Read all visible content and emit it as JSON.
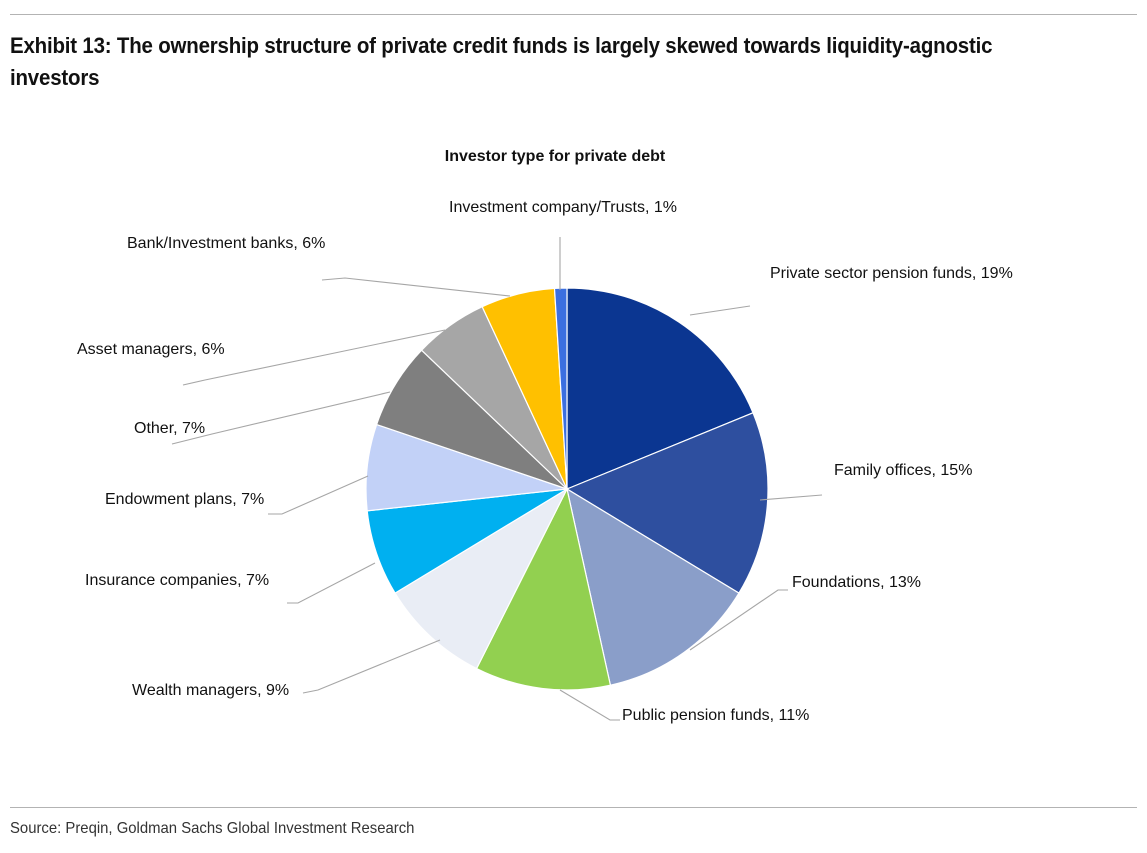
{
  "exhibit": {
    "title": "Exhibit 13: The ownership structure of private credit funds is largely skewed towards liquidity-agnostic investors",
    "source": "Source: Preqin, Goldman Sachs Global Investment Research"
  },
  "chart_data": {
    "type": "pie",
    "title": "Investor type for private debt",
    "unit": "%",
    "slices": [
      {
        "label": "Private sector pension funds",
        "value": 19,
        "color": "#0b3691"
      },
      {
        "label": "Family offices",
        "value": 15,
        "color": "#2e4f9f"
      },
      {
        "label": "Foundations",
        "value": 13,
        "color": "#8a9ec9"
      },
      {
        "label": "Public pension funds",
        "value": 11,
        "color": "#92d050"
      },
      {
        "label": "Wealth managers",
        "value": 9,
        "color": "#e9edf5"
      },
      {
        "label": "Insurance companies",
        "value": 7,
        "color": "#00b0f0"
      },
      {
        "label": "Endowment plans",
        "value": 7,
        "color": "#c2d1f7"
      },
      {
        "label": "Other",
        "value": 7,
        "color": "#7f7f7f"
      },
      {
        "label": "Asset managers",
        "value": 6,
        "color": "#a6a6a6"
      },
      {
        "label": "Bank/Investment banks",
        "value": 6,
        "color": "#ffc000"
      },
      {
        "label": "Investment company/Trusts",
        "value": 1,
        "color": "#3b6fe0"
      }
    ]
  }
}
